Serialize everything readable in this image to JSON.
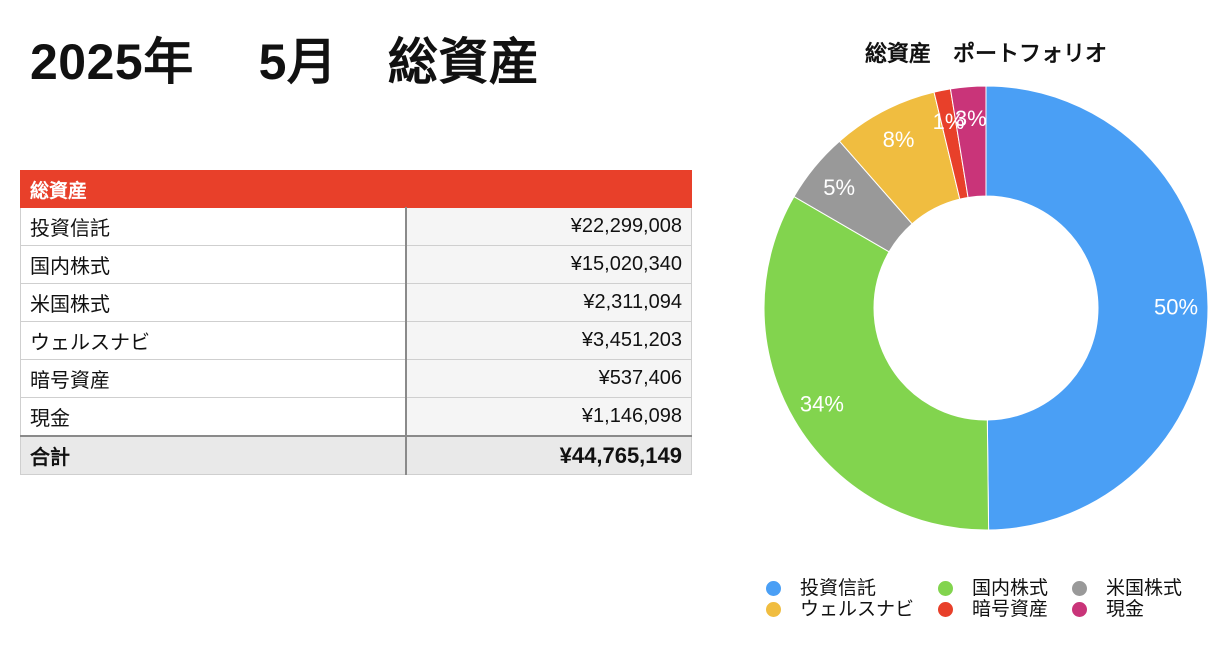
{
  "page": {
    "title": "2025年　 5月　総資産"
  },
  "table": {
    "header": "総資産",
    "rows": [
      {
        "label": "投資信託",
        "amount": "¥22,299,008"
      },
      {
        "label": "国内株式",
        "amount": "¥15,020,340"
      },
      {
        "label": "米国株式",
        "amount": "¥2,311,094"
      },
      {
        "label": "ウェルスナビ",
        "amount": "¥3,451,203"
      },
      {
        "label": "暗号資産",
        "amount": "¥537,406"
      },
      {
        "label": "現金",
        "amount": "¥1,146,098"
      }
    ],
    "total": {
      "label": "合計",
      "amount": "¥44,765,149"
    }
  },
  "chart_data": {
    "type": "pie",
    "title": "総資産　ポートフォリオ",
    "donut": true,
    "start_angle": "12 o'clock, clockwise",
    "categories": [
      "投資信託",
      "国内株式",
      "米国株式",
      "ウェルスナビ",
      "暗号資産",
      "現金"
    ],
    "values": [
      22299008,
      15020340,
      2311094,
      3451203,
      537406,
      1146098
    ],
    "labels": [
      "50%",
      "34%",
      "5%",
      "8%",
      "1%",
      "3%"
    ],
    "colors": [
      "#4a9ff5",
      "#82d44e",
      "#999999",
      "#f0bd40",
      "#e8402a",
      "#c93479"
    ],
    "legend_position": "bottom"
  }
}
